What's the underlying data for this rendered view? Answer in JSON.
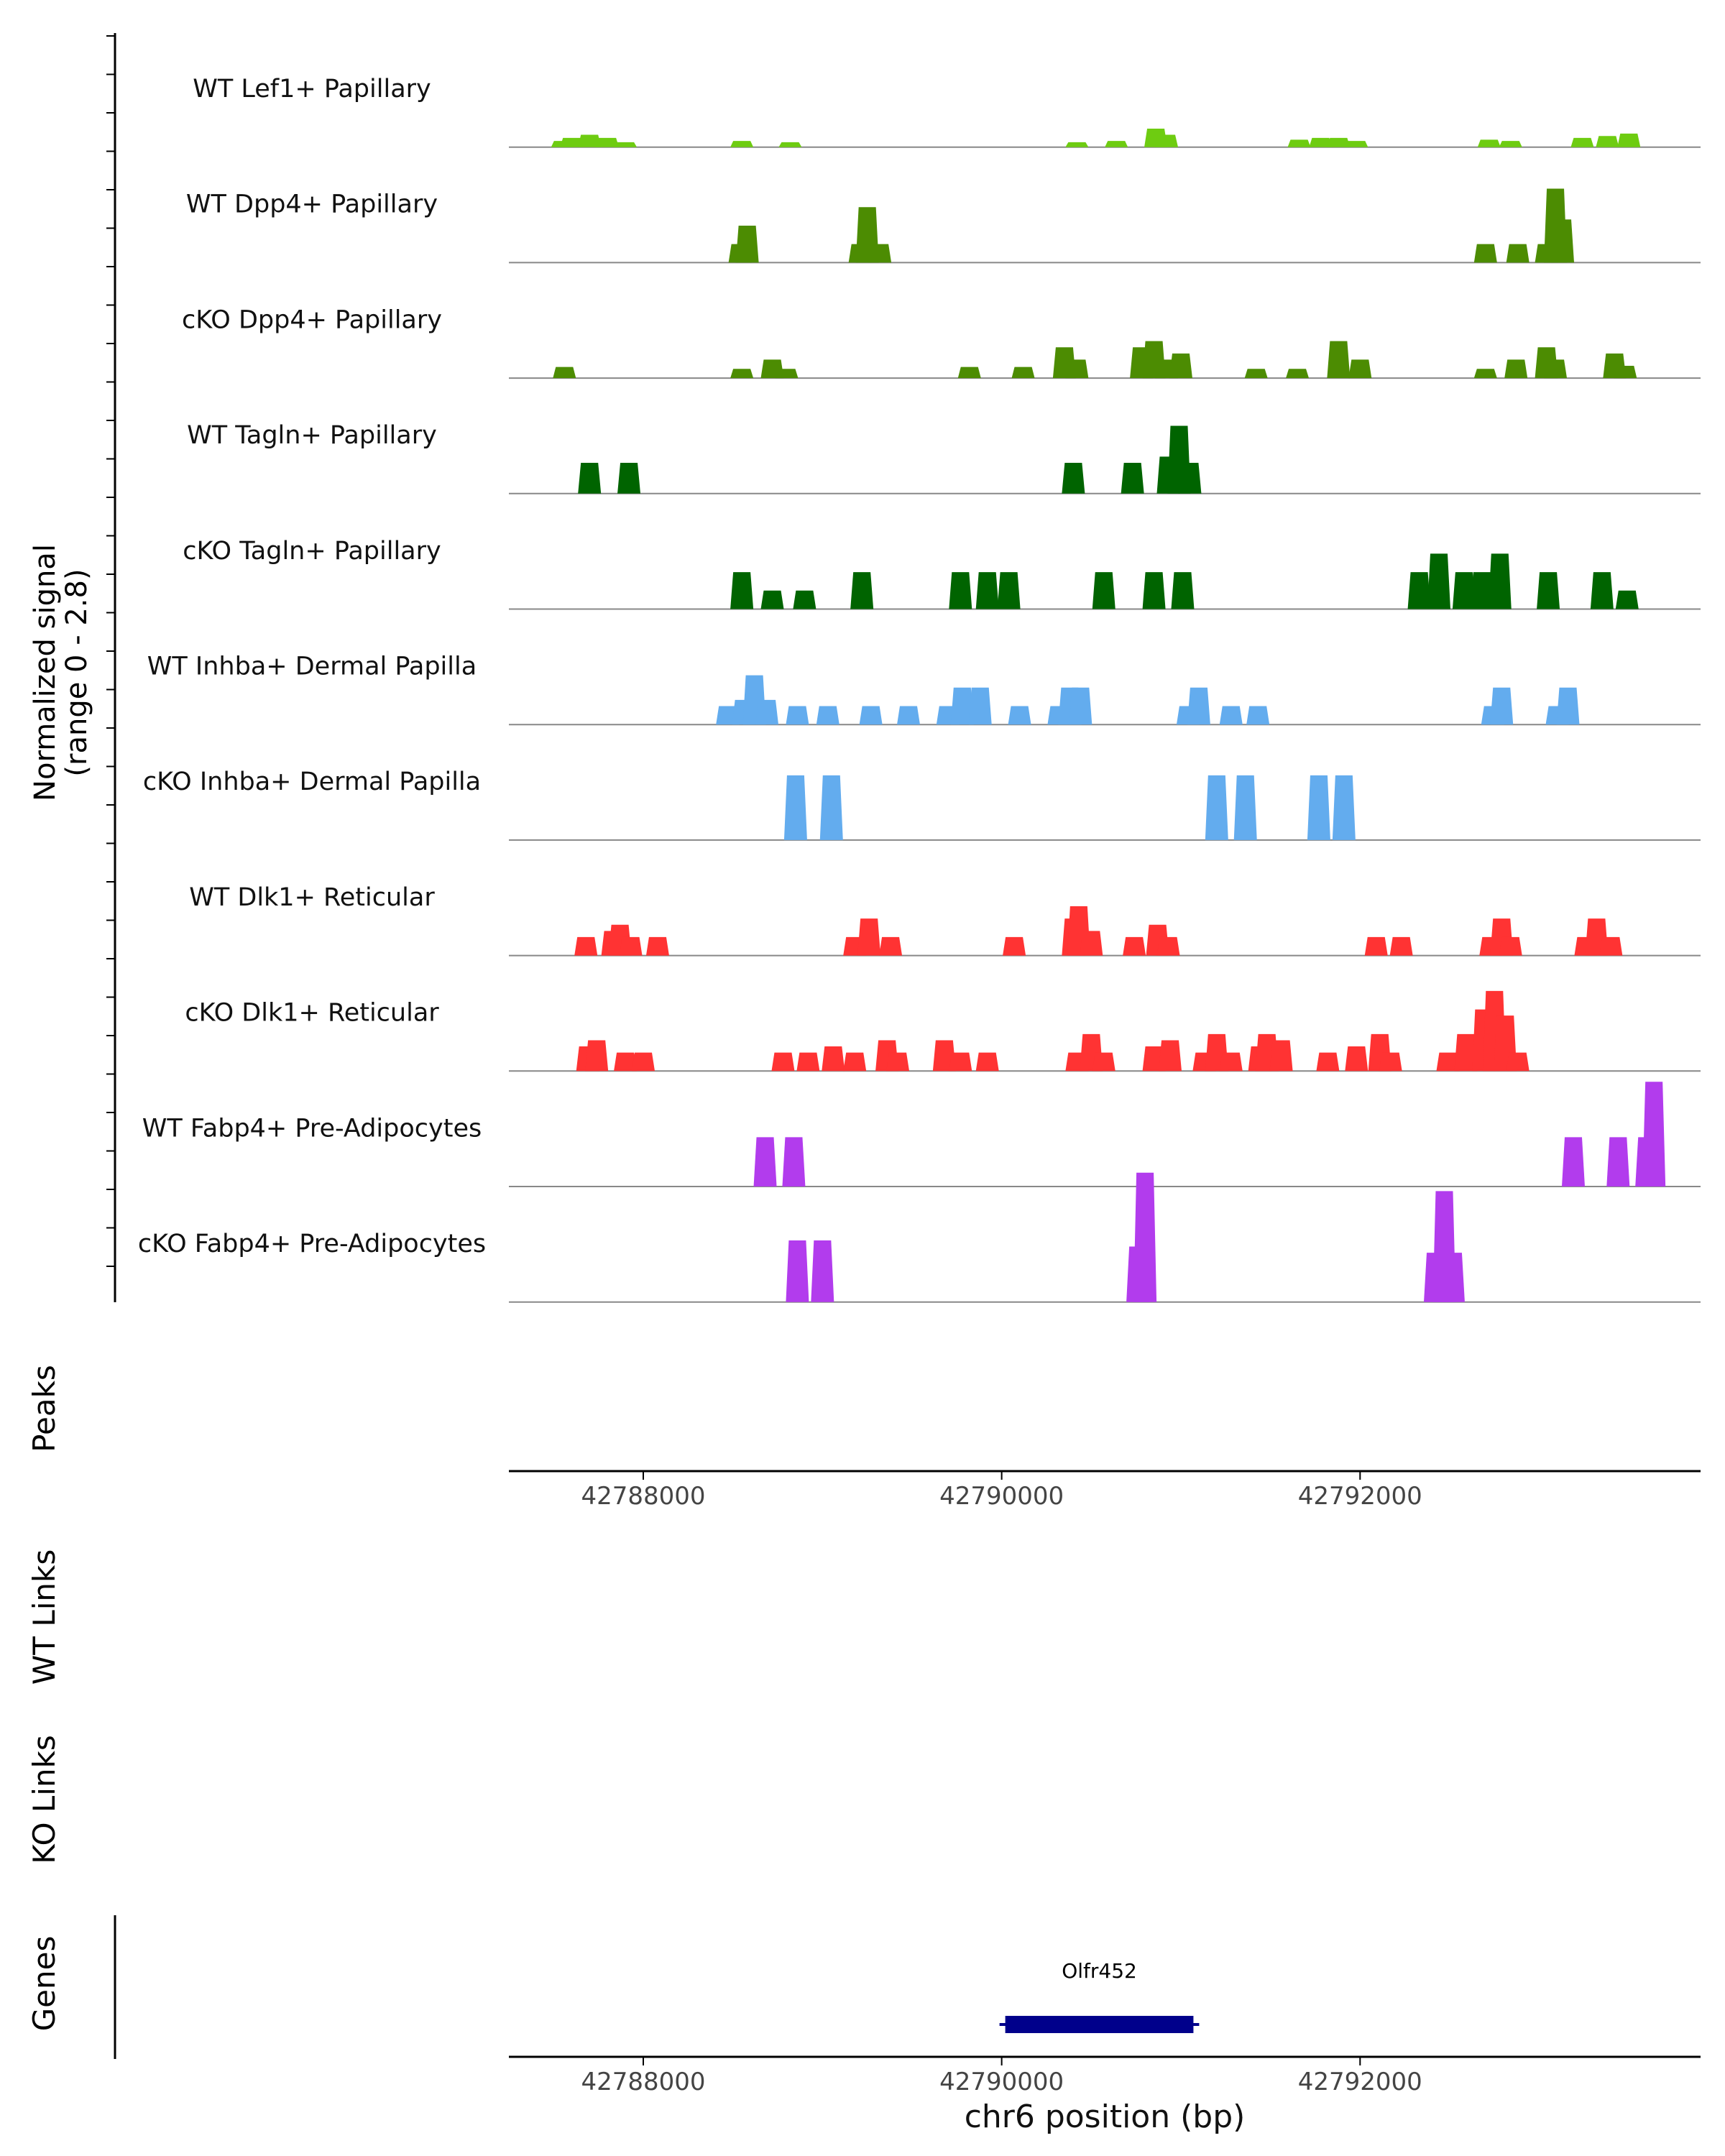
{
  "chart_data": {
    "type": "area",
    "subtype": "genome-coverage-track",
    "chromosome": "chr6",
    "xlim": [
      42787250,
      42793900
    ],
    "xlabel": "chr6 position (bp)",
    "xticks": [
      42788000,
      42790000,
      42792000
    ],
    "xtick_labels": [
      "42788000",
      "42790000",
      "42792000"
    ],
    "ylabel_line1": "Normalized signal",
    "ylabel_line2": "(range 0 - 2.8)",
    "signal_range": [
      0,
      2.8
    ],
    "tracks": [
      {
        "name": "WT Lef1+ Papillary",
        "color": "#6ECC11",
        "peaks": [
          [
            42787550,
            0.1
          ],
          [
            42787600,
            0.15
          ],
          [
            42787700,
            0.2
          ],
          [
            42787800,
            0.15
          ],
          [
            42787900,
            0.08
          ],
          [
            42788550,
            0.1
          ],
          [
            42788820,
            0.08
          ],
          [
            42790420,
            0.08
          ],
          [
            42790640,
            0.1
          ],
          [
            42790860,
            0.3
          ],
          [
            42790920,
            0.2
          ],
          [
            42791660,
            0.12
          ],
          [
            42791780,
            0.15
          ],
          [
            42791880,
            0.15
          ],
          [
            42791980,
            0.1
          ],
          [
            42792720,
            0.12
          ],
          [
            42792840,
            0.1
          ],
          [
            42793240,
            0.15
          ],
          [
            42793380,
            0.18
          ],
          [
            42793500,
            0.22
          ]
        ]
      },
      {
        "name": "WT Dpp4+ Papillary",
        "color": "#4C8C02",
        "peaks": [
          [
            42788540,
            0.3
          ],
          [
            42788580,
            0.6
          ],
          [
            42789210,
            0.3
          ],
          [
            42789250,
            0.9
          ],
          [
            42789320,
            0.3
          ],
          [
            42792700,
            0.3
          ],
          [
            42792880,
            0.3
          ],
          [
            42793040,
            0.3
          ],
          [
            42793090,
            1.2
          ],
          [
            42793130,
            0.7
          ]
        ]
      },
      {
        "name": "cKO Dpp4+ Papillary",
        "color": "#4C8C02",
        "peaks": [
          [
            42787560,
            0.18
          ],
          [
            42788550,
            0.15
          ],
          [
            42788720,
            0.3
          ],
          [
            42788800,
            0.15
          ],
          [
            42789820,
            0.18
          ],
          [
            42790120,
            0.18
          ],
          [
            42790350,
            0.5
          ],
          [
            42790420,
            0.3
          ],
          [
            42790780,
            0.5
          ],
          [
            42790850,
            0.6
          ],
          [
            42790920,
            0.3
          ],
          [
            42791000,
            0.4
          ],
          [
            42791420,
            0.15
          ],
          [
            42791650,
            0.15
          ],
          [
            42791880,
            0.6
          ],
          [
            42792000,
            0.3
          ],
          [
            42792700,
            0.15
          ],
          [
            42792870,
            0.3
          ],
          [
            42793040,
            0.5
          ],
          [
            42793090,
            0.3
          ],
          [
            42793420,
            0.4
          ],
          [
            42793480,
            0.2
          ]
        ]
      },
      {
        "name": "WT Tagln+ Papillary",
        "color": "#006400",
        "peaks": [
          [
            42787700,
            0.5
          ],
          [
            42787920,
            0.5
          ],
          [
            42790400,
            0.5
          ],
          [
            42790730,
            0.5
          ],
          [
            42790930,
            0.6
          ],
          [
            42790990,
            1.1
          ],
          [
            42791050,
            0.5
          ]
        ]
      },
      {
        "name": "cKO Tagln+ Papillary",
        "color": "#006400",
        "peaks": [
          [
            42788550,
            0.6
          ],
          [
            42788720,
            0.3
          ],
          [
            42788900,
            0.3
          ],
          [
            42789220,
            0.6
          ],
          [
            42789770,
            0.6
          ],
          [
            42789920,
            0.6
          ],
          [
            42790040,
            0.6
          ],
          [
            42790570,
            0.6
          ],
          [
            42790850,
            0.6
          ],
          [
            42791010,
            0.6
          ],
          [
            42792330,
            0.6
          ],
          [
            42792440,
            0.9
          ],
          [
            42792580,
            0.6
          ],
          [
            42792680,
            0.6
          ],
          [
            42792780,
            0.9
          ],
          [
            42793050,
            0.6
          ],
          [
            42793350,
            0.6
          ],
          [
            42793490,
            0.3
          ]
        ]
      },
      {
        "name": "WT Inhba+ Dermal Papilla",
        "color": "#63ACEE",
        "peaks": [
          [
            42788470,
            0.3
          ],
          [
            42788560,
            0.4
          ],
          [
            42788620,
            0.8
          ],
          [
            42788690,
            0.4
          ],
          [
            42788860,
            0.3
          ],
          [
            42789030,
            0.3
          ],
          [
            42789270,
            0.3
          ],
          [
            42789480,
            0.3
          ],
          [
            42789700,
            0.3
          ],
          [
            42789780,
            0.6
          ],
          [
            42789880,
            0.6
          ],
          [
            42790100,
            0.3
          ],
          [
            42790320,
            0.3
          ],
          [
            42790380,
            0.6
          ],
          [
            42790440,
            0.6
          ],
          [
            42791040,
            0.3
          ],
          [
            42791100,
            0.6
          ],
          [
            42791280,
            0.3
          ],
          [
            42791430,
            0.3
          ],
          [
            42792740,
            0.3
          ],
          [
            42792790,
            0.6
          ],
          [
            42793100,
            0.3
          ],
          [
            42793160,
            0.6
          ]
        ]
      },
      {
        "name": "cKO Inhba+ Dermal Papilla",
        "color": "#63ACEE",
        "peaks": [
          [
            42788850,
            1.05
          ],
          [
            42789050,
            1.05
          ],
          [
            42791200,
            1.05
          ],
          [
            42791360,
            1.05
          ],
          [
            42791770,
            1.05
          ],
          [
            42791910,
            1.05
          ]
        ]
      },
      {
        "name": "WT Dlk1+ Reticular",
        "color": "#FF3333",
        "peaks": [
          [
            42787680,
            0.3
          ],
          [
            42787830,
            0.4
          ],
          [
            42787870,
            0.5
          ],
          [
            42787930,
            0.3
          ],
          [
            42788080,
            0.3
          ],
          [
            42789180,
            0.3
          ],
          [
            42789260,
            0.6
          ],
          [
            42789380,
            0.3
          ],
          [
            42790070,
            0.3
          ],
          [
            42790400,
            0.6
          ],
          [
            42790430,
            0.8
          ],
          [
            42790500,
            0.4
          ],
          [
            42790740,
            0.3
          ],
          [
            42790870,
            0.5
          ],
          [
            42790930,
            0.3
          ],
          [
            42792090,
            0.3
          ],
          [
            42792230,
            0.3
          ],
          [
            42792730,
            0.3
          ],
          [
            42792790,
            0.6
          ],
          [
            42792840,
            0.3
          ],
          [
            42793260,
            0.3
          ],
          [
            42793320,
            0.6
          ],
          [
            42793400,
            0.3
          ]
        ]
      },
      {
        "name": "cKO Dlk1+ Reticular",
        "color": "#FF3333",
        "peaks": [
          [
            42787690,
            0.4
          ],
          [
            42787740,
            0.5
          ],
          [
            42787900,
            0.3
          ],
          [
            42788000,
            0.3
          ],
          [
            42788780,
            0.3
          ],
          [
            42788920,
            0.3
          ],
          [
            42789060,
            0.4
          ],
          [
            42789180,
            0.3
          ],
          [
            42789360,
            0.5
          ],
          [
            42789420,
            0.3
          ],
          [
            42789680,
            0.5
          ],
          [
            42789770,
            0.3
          ],
          [
            42789920,
            0.3
          ],
          [
            42790420,
            0.3
          ],
          [
            42790500,
            0.6
          ],
          [
            42790570,
            0.3
          ],
          [
            42790850,
            0.4
          ],
          [
            42790940,
            0.5
          ],
          [
            42791130,
            0.3
          ],
          [
            42791200,
            0.6
          ],
          [
            42791280,
            0.3
          ],
          [
            42791440,
            0.4
          ],
          [
            42791480,
            0.6
          ],
          [
            42791560,
            0.5
          ],
          [
            42791820,
            0.3
          ],
          [
            42791980,
            0.4
          ],
          [
            42792110,
            0.6
          ],
          [
            42792170,
            0.3
          ],
          [
            42792490,
            0.3
          ],
          [
            42792590,
            0.6
          ],
          [
            42792690,
            1.0
          ],
          [
            42792750,
            1.3
          ],
          [
            42792810,
            0.9
          ],
          [
            42792880,
            0.3
          ]
        ]
      },
      {
        "name": "WT Fabp4+ Pre-Adipocytes",
        "color": "#B23CED",
        "peaks": [
          [
            42788680,
            0.8
          ],
          [
            42788840,
            0.8
          ],
          [
            42793190,
            0.8
          ],
          [
            42793440,
            0.8
          ],
          [
            42793600,
            0.8
          ],
          [
            42793640,
            1.7
          ]
        ]
      },
      {
        "name": "cKO Fabp4+ Pre-Adipocytes",
        "color": "#B23CED",
        "peaks": [
          [
            42788860,
            1.0
          ],
          [
            42789000,
            1.0
          ],
          [
            42790760,
            0.9
          ],
          [
            42790800,
            2.1
          ],
          [
            42792420,
            0.8
          ],
          [
            42792470,
            1.8
          ],
          [
            42792520,
            0.8
          ]
        ]
      }
    ],
    "extra_tracks": [
      {
        "name": "Peaks",
        "features": []
      },
      {
        "name": "WT Links",
        "features": []
      },
      {
        "name": "KO Links",
        "features": []
      }
    ],
    "gene_track": {
      "label": "Genes",
      "genes": [
        {
          "name": "Olfr452",
          "start": 42790020,
          "end": 42791070,
          "color": "#00008B"
        }
      ]
    }
  }
}
